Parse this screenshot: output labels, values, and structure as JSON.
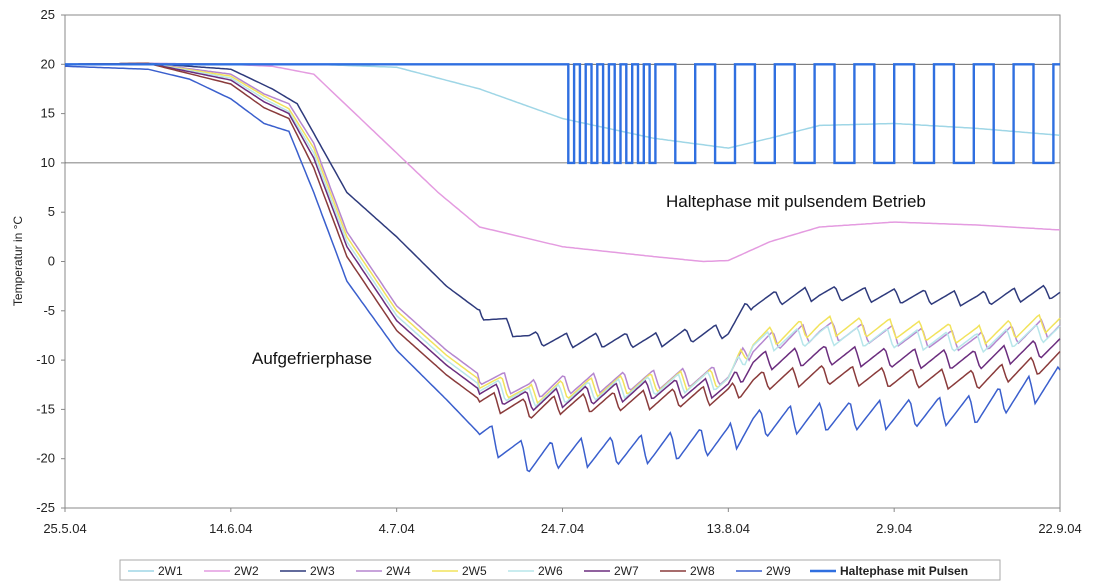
{
  "chart_data": {
    "type": "line",
    "title": "",
    "xlabel": "",
    "ylabel": "Temperatur in °C",
    "x_tick_labels": [
      "25.5.04",
      "14.6.04",
      "4.7.04",
      "24.7.04",
      "13.8.04",
      "2.9.04",
      "22.9.04"
    ],
    "x_range": [
      "2004-05-25",
      "2004-09-22"
    ],
    "ylim": [
      -25,
      25
    ],
    "yticks": [
      25,
      20,
      15,
      10,
      5,
      0,
      -5,
      -10,
      -15,
      -20,
      -25
    ],
    "grid": {
      "horizontal_lines_at": [
        20,
        10
      ]
    },
    "legend_position": "bottom",
    "annotations": [
      {
        "text": "Haltephase mit pulsendem Betrieb"
      },
      {
        "text": "Aufgefrierphase"
      }
    ],
    "series": [
      {
        "name": "2W1",
        "color": "#9fd6e6",
        "x": [
          "2004-05-25",
          "2004-06-04",
          "2004-06-14",
          "2004-06-24",
          "2004-07-04",
          "2004-07-14",
          "2004-07-24",
          "2004-08-04",
          "2004-08-13",
          "2004-08-18",
          "2004-08-24",
          "2004-09-02",
          "2004-09-12",
          "2004-09-22"
        ],
        "values": [
          20,
          20.1,
          20,
          20,
          19.7,
          17.5,
          14.5,
          12.5,
          11.5,
          12.5,
          13.8,
          14,
          13.5,
          12.8
        ]
      },
      {
        "name": "2W2",
        "color": "#e49be0",
        "x": [
          "2004-05-25",
          "2004-06-04",
          "2004-06-14",
          "2004-06-19",
          "2004-06-24",
          "2004-06-29",
          "2004-07-04",
          "2004-07-09",
          "2004-07-14",
          "2004-07-24",
          "2004-08-04",
          "2004-08-10",
          "2004-08-13",
          "2004-08-18",
          "2004-08-24",
          "2004-09-02",
          "2004-09-12",
          "2004-09-22"
        ],
        "values": [
          20,
          20.1,
          20,
          19.8,
          19,
          15,
          11,
          7,
          3.5,
          1.5,
          0.5,
          0,
          0.1,
          2,
          3.5,
          4,
          3.7,
          3.2
        ]
      },
      {
        "name": "2W3",
        "color": "#2e3a7c",
        "amplitude": 1.5,
        "offset": 0,
        "x": [
          "2004-05-25",
          "2004-06-04",
          "2004-06-14",
          "2004-06-19",
          "2004-06-22",
          "2004-06-24",
          "2004-06-28",
          "2004-07-04",
          "2004-07-10",
          "2004-07-14",
          "2004-07-20",
          "2004-07-24",
          "2004-08-04",
          "2004-08-13",
          "2004-08-16",
          "2004-08-24",
          "2004-09-02",
          "2004-09-12",
          "2004-09-22"
        ],
        "values": [
          20,
          20.1,
          19.5,
          17.5,
          16,
          13,
          7,
          2.5,
          -2.5,
          -5,
          -7.8,
          -8,
          -8,
          -7,
          -4,
          -3.2,
          -3.5,
          -3.8,
          -3
        ]
      },
      {
        "name": "2W4",
        "color": "#b586cf",
        "amplitude": 2,
        "offset": 0.3,
        "x": [
          "2004-05-25",
          "2004-06-04",
          "2004-06-14",
          "2004-06-18",
          "2004-06-21",
          "2004-06-24",
          "2004-06-28",
          "2004-07-04",
          "2004-07-10",
          "2004-07-14",
          "2004-07-20",
          "2004-07-24",
          "2004-08-04",
          "2004-08-13",
          "2004-08-16",
          "2004-08-24",
          "2004-09-02",
          "2004-09-12",
          "2004-09-22"
        ],
        "values": [
          20,
          20.1,
          19,
          17,
          16,
          12,
          3,
          -4.5,
          -9,
          -11.5,
          -13,
          -12.5,
          -12,
          -11.5,
          -8.5,
          -7,
          -7.5,
          -8.2,
          -6.5
        ]
      },
      {
        "name": "2W5",
        "color": "#f2e35c",
        "amplitude": 2,
        "offset": 0.6,
        "x": [
          "2004-05-25",
          "2004-06-04",
          "2004-06-14",
          "2004-06-18",
          "2004-06-21",
          "2004-06-24",
          "2004-06-28",
          "2004-07-04",
          "2004-07-10",
          "2004-07-14",
          "2004-07-20",
          "2004-07-24",
          "2004-08-04",
          "2004-08-13",
          "2004-08-16",
          "2004-08-24",
          "2004-09-02",
          "2004-09-12",
          "2004-09-22"
        ],
        "values": [
          20,
          20.1,
          18.8,
          16.8,
          15.5,
          11.5,
          2.5,
          -5,
          -9.5,
          -12,
          -13.5,
          -13,
          -12.3,
          -11.8,
          -8,
          -6.5,
          -6.8,
          -7.5,
          -6
        ]
      },
      {
        "name": "2W6",
        "color": "#b7e6ea",
        "amplitude": 2,
        "offset": 0.9,
        "x": [
          "2004-05-25",
          "2004-06-04",
          "2004-06-14",
          "2004-06-18",
          "2004-06-21",
          "2004-06-24",
          "2004-06-28",
          "2004-07-04",
          "2004-07-10",
          "2004-07-14",
          "2004-07-20",
          "2004-07-24",
          "2004-08-04",
          "2004-08-13",
          "2004-08-16",
          "2004-08-24",
          "2004-09-02",
          "2004-09-12",
          "2004-09-22"
        ],
        "values": [
          20,
          20.1,
          18.6,
          16.5,
          15.2,
          11,
          2,
          -5.5,
          -10,
          -12.5,
          -13.8,
          -13.4,
          -12.6,
          -12,
          -8.3,
          -7.5,
          -7.8,
          -8.3,
          -7
        ]
      },
      {
        "name": "2W7",
        "color": "#6b2d7e",
        "amplitude": 2,
        "offset": 1.2,
        "x": [
          "2004-05-25",
          "2004-06-04",
          "2004-06-14",
          "2004-06-18",
          "2004-06-21",
          "2004-06-24",
          "2004-06-28",
          "2004-07-04",
          "2004-07-10",
          "2004-07-14",
          "2004-07-20",
          "2004-07-24",
          "2004-08-04",
          "2004-08-13",
          "2004-08-16",
          "2004-08-24",
          "2004-09-02",
          "2004-09-12",
          "2004-09-22"
        ],
        "values": [
          20,
          20.1,
          18.4,
          16.2,
          15,
          10.5,
          1.5,
          -6,
          -10.5,
          -13,
          -14.2,
          -13.8,
          -13,
          -12.8,
          -10.2,
          -9.5,
          -9.8,
          -10,
          -8.5
        ]
      },
      {
        "name": "2W8",
        "color": "#8a3b3b",
        "amplitude": 2,
        "offset": 1.5,
        "x": [
          "2004-05-25",
          "2004-06-04",
          "2004-06-14",
          "2004-06-18",
          "2004-06-21",
          "2004-06-24",
          "2004-06-28",
          "2004-07-04",
          "2004-07-10",
          "2004-07-14",
          "2004-07-20",
          "2004-07-24",
          "2004-08-04",
          "2004-08-13",
          "2004-08-16",
          "2004-08-24",
          "2004-09-02",
          "2004-09-12",
          "2004-09-22"
        ],
        "values": [
          20,
          20.1,
          18,
          15.6,
          14.5,
          9.5,
          0.5,
          -7,
          -11.5,
          -14,
          -15,
          -14.5,
          -14,
          -13.5,
          -12.2,
          -11.5,
          -11.8,
          -12,
          -10
        ]
      },
      {
        "name": "2W9",
        "color": "#3a5fcd",
        "amplitude": 3,
        "offset": 1.8,
        "x": [
          "2004-05-25",
          "2004-06-04",
          "2004-06-09",
          "2004-06-14",
          "2004-06-18",
          "2004-06-21",
          "2004-06-24",
          "2004-06-28",
          "2004-07-04",
          "2004-07-10",
          "2004-07-14",
          "2004-07-20",
          "2004-07-24",
          "2004-08-04",
          "2004-08-13",
          "2004-08-16",
          "2004-08-24",
          "2004-09-02",
          "2004-09-12",
          "2004-09-22"
        ],
        "values": [
          19.8,
          19.5,
          18.5,
          16.5,
          14,
          13.2,
          7,
          -2,
          -9,
          -14,
          -17.5,
          -20,
          -19.5,
          -19,
          -18,
          -16.5,
          -15.8,
          -15.5,
          -15,
          -12
        ]
      },
      {
        "name": "Haltephase mit Pulsen",
        "color": "#2f6fe0",
        "emphasis": true,
        "x": [
          "2004-05-25",
          "2004-07-24"
        ],
        "values": [
          20,
          20
        ],
        "pulse_phase": {
          "start": "2004-07-24",
          "end": "2004-09-22",
          "high": 20,
          "low": 10
        }
      }
    ]
  }
}
